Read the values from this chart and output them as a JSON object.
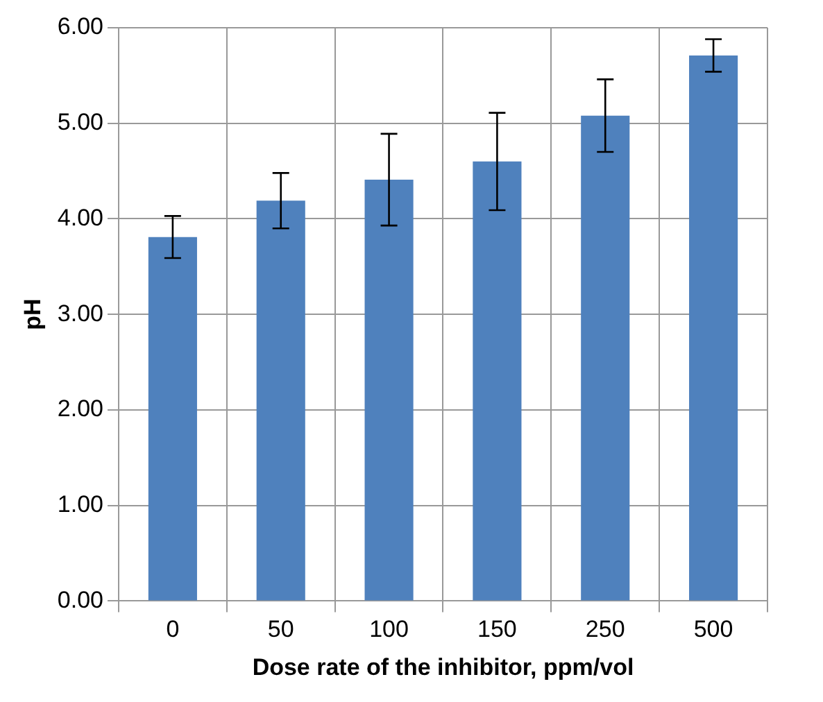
{
  "chart_data": {
    "type": "bar",
    "xlabel": "Dose rate of the inhibitor, ppm/vol",
    "ylabel": "pH",
    "categories": [
      "0",
      "50",
      "100",
      "150",
      "250",
      "500"
    ],
    "values": [
      3.81,
      4.19,
      4.41,
      4.6,
      5.08,
      5.71
    ],
    "errors": [
      0.22,
      0.29,
      0.48,
      0.51,
      0.38,
      0.17
    ],
    "color": "#4f81bd",
    "ylim": [
      0,
      6
    ],
    "yticks": [
      {
        "value": 0,
        "label": "0.00"
      },
      {
        "value": 1,
        "label": "1.00"
      },
      {
        "value": 2,
        "label": "2.00"
      },
      {
        "value": 3,
        "label": "3.00"
      },
      {
        "value": 4,
        "label": "4.00"
      },
      {
        "value": 5,
        "label": "5.00"
      },
      {
        "value": 6,
        "label": "6.00"
      }
    ],
    "grid": true,
    "legend": false
  }
}
